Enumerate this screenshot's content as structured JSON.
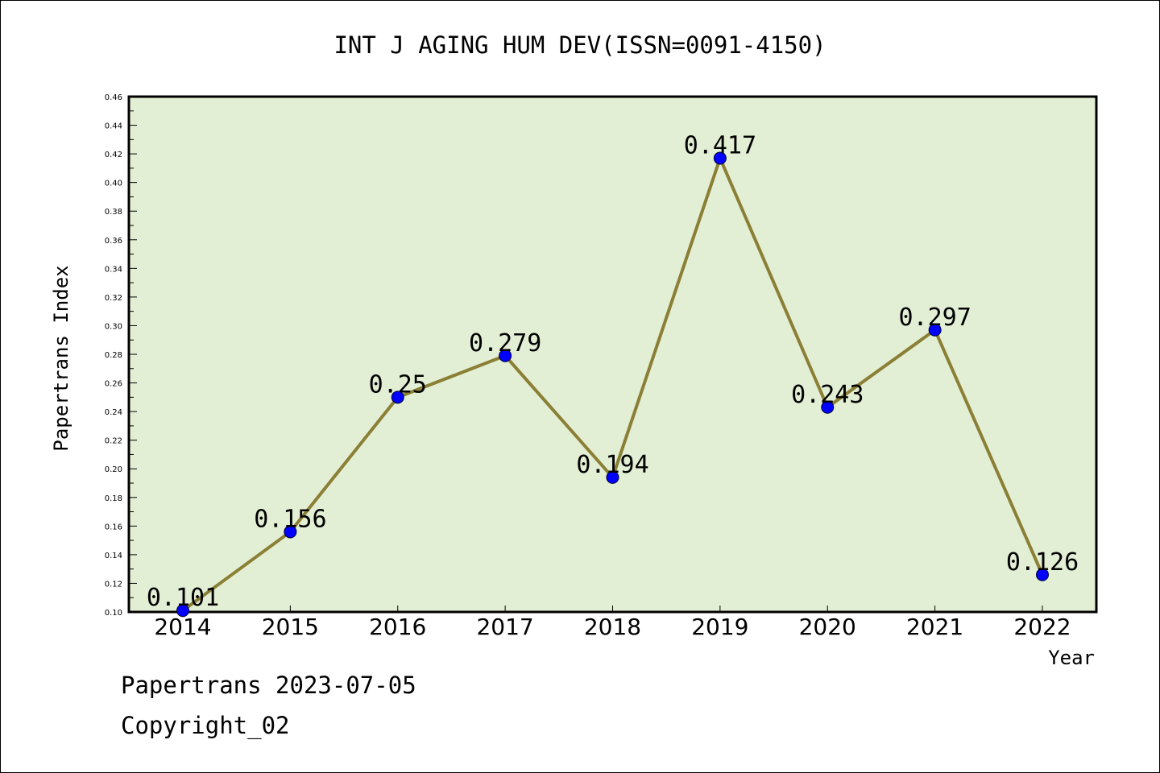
{
  "chart_data": {
    "type": "line",
    "title": "INT J AGING HUM DEV(ISSN=0091-4150)",
    "xlabel": "Year",
    "ylabel": "Papertrans Index",
    "categories": [
      "2014",
      "2015",
      "2016",
      "2017",
      "2018",
      "2019",
      "2020",
      "2021",
      "2022"
    ],
    "values": [
      0.101,
      0.156,
      0.25,
      0.279,
      0.194,
      0.417,
      0.243,
      0.297,
      0.126
    ],
    "data_labels": [
      "0.101",
      "0.156",
      "0.25",
      "0.279",
      "0.194",
      "0.417",
      "0.243",
      "0.297",
      "0.126"
    ],
    "ylim": [
      0.1,
      0.46
    ],
    "y_ticks": [
      "0.10",
      "0.12",
      "0.14",
      "0.16",
      "0.18",
      "0.20",
      "0.22",
      "0.24",
      "0.26",
      "0.28",
      "0.30",
      "0.32",
      "0.34",
      "0.36",
      "0.38",
      "0.40",
      "0.42",
      "0.44",
      "0.46"
    ],
    "grid": false,
    "legend": "none",
    "colors": {
      "plot_background": "#e2efd4",
      "line": "#8b7f35",
      "marker": "#0000ff"
    }
  },
  "footer": {
    "source": "Papertrans 2023-07-05",
    "copyright": "Copyright_02"
  }
}
